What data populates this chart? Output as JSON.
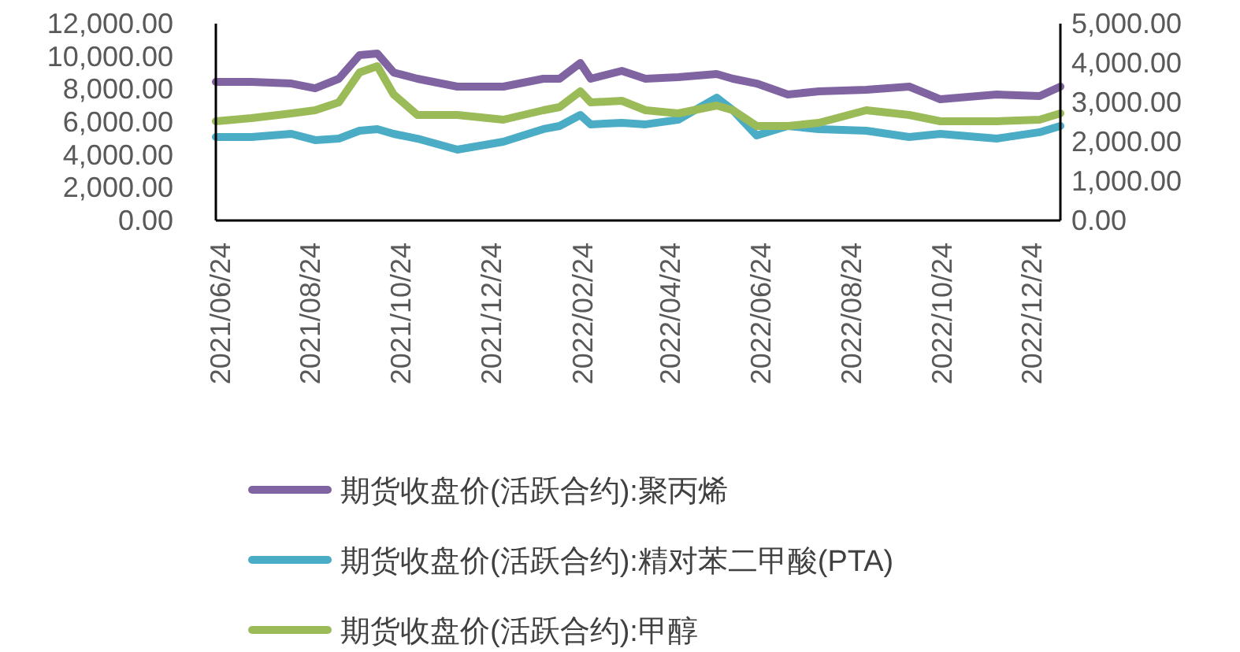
{
  "chart_data": {
    "type": "line",
    "legend": "bottom",
    "grid": false,
    "x": [
      "2021-06-21",
      "2021-07-15",
      "2021-08-11",
      "2021-08-27",
      "2021-09-12",
      "2021-09-26",
      "2021-10-08",
      "2021-10-19",
      "2021-11-04",
      "2021-12-01",
      "2022-01-01",
      "2022-01-28",
      "2022-02-08",
      "2022-02-22",
      "2022-03-01",
      "2022-03-22",
      "2022-04-07",
      "2022-04-29",
      "2022-05-25",
      "2022-06-05",
      "2022-06-21",
      "2022-07-12",
      "2022-08-02",
      "2022-09-03",
      "2022-10-02",
      "2022-10-23",
      "2022-11-30",
      "2022-12-29",
      "2023-01-12"
    ],
    "series": [
      {
        "name": "期货收盘价(活跃合约):聚丙烯",
        "color": "#8064a2",
        "values": [
          8450,
          8450,
          8350,
          8060,
          8640,
          10080,
          10180,
          9020,
          8640,
          8160,
          8160,
          8640,
          8640,
          9600,
          8640,
          9120,
          8640,
          8740,
          8930,
          8640,
          8350,
          7680,
          7870,
          7970,
          8160,
          7390,
          7680,
          7580,
          8160
        ]
      },
      {
        "name": "期货收盘价(活跃合约):精对苯二甲酸(PTA)",
        "color": "#4bacc6",
        "values": [
          5090,
          5090,
          5280,
          4900,
          4990,
          5470,
          5570,
          5280,
          4990,
          4320,
          4800,
          5570,
          5760,
          6430,
          5860,
          5950,
          5860,
          6140,
          7490,
          6720,
          5180,
          5760,
          5570,
          5470,
          5090,
          5280,
          4990,
          5380,
          5760
        ]
      },
      {
        "name": "期货收盘价(活跃合约):甲醇",
        "color": "#9bbb59",
        "axis": "y2",
        "values": [
          2520,
          2600,
          2720,
          2800,
          3000,
          3760,
          3920,
          3200,
          2680,
          2680,
          2560,
          2800,
          2880,
          3280,
          3000,
          3040,
          2800,
          2720,
          2920,
          2800,
          2400,
          2400,
          2480,
          2800,
          2680,
          2520,
          2520,
          2560,
          2720
        ]
      }
    ],
    "xlim": [
      "2021-06-21",
      "2023-01-12"
    ],
    "xticks": [
      {
        "value": "2021-06-24",
        "label": "2021/06/24"
      },
      {
        "value": "2021-08-24",
        "label": "2021/08/24"
      },
      {
        "value": "2021-10-24",
        "label": "2021/10/24"
      },
      {
        "value": "2021-12-24",
        "label": "2021/12/24"
      },
      {
        "value": "2022-02-24",
        "label": "2022/02/24"
      },
      {
        "value": "2022-04-24",
        "label": "2022/04/24"
      },
      {
        "value": "2022-06-24",
        "label": "2022/06/24"
      },
      {
        "value": "2022-08-24",
        "label": "2022/08/24"
      },
      {
        "value": "2022-10-24",
        "label": "2022/10/24"
      },
      {
        "value": "2022-12-24",
        "label": "2022/12/24"
      }
    ],
    "ylim": [
      0,
      12000
    ],
    "yticks": [
      {
        "value": 0,
        "label": "0.00"
      },
      {
        "value": 2000,
        "label": "2,000.00"
      },
      {
        "value": 4000,
        "label": "4,000.00"
      },
      {
        "value": 6000,
        "label": "6,000.00"
      },
      {
        "value": 8000,
        "label": "8,000.00"
      },
      {
        "value": 10000,
        "label": "10,000.00"
      },
      {
        "value": 12000,
        "label": "12,000.00"
      }
    ],
    "y2lim": [
      0,
      5000
    ],
    "y2ticks": [
      {
        "value": 0,
        "label": "0.00"
      },
      {
        "value": 1000,
        "label": "1,000.00"
      },
      {
        "value": 2000,
        "label": "2,000.00"
      },
      {
        "value": 3000,
        "label": "3,000.00"
      },
      {
        "value": 4000,
        "label": "4,000.00"
      },
      {
        "value": 5000,
        "label": "5,000.00"
      }
    ]
  }
}
